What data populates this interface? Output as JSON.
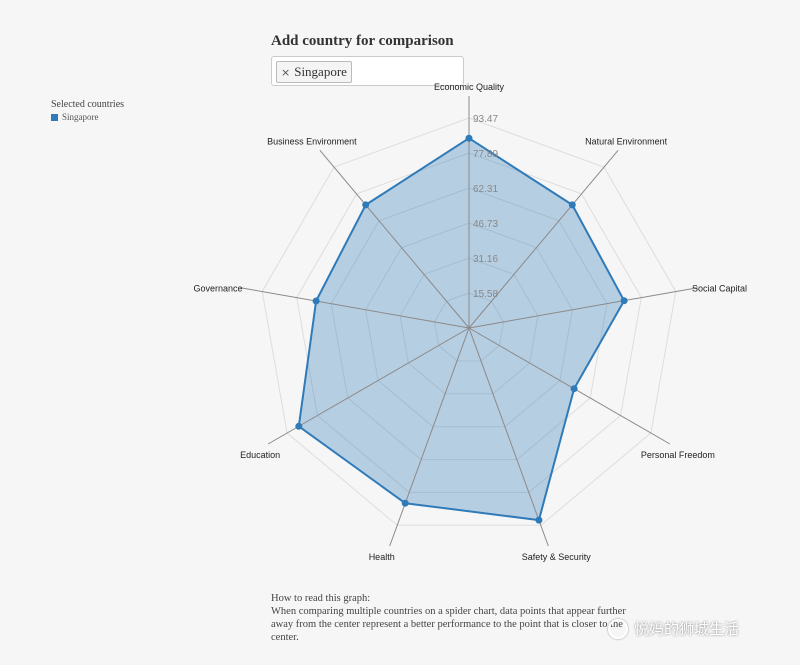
{
  "page": {
    "section_title": "Add country for comparison",
    "selected_country_tag": "Singapore",
    "tag_remove_glyph": "×",
    "legend_title": "Selected countries",
    "note_title": "How to read this graph:",
    "note_body": "When comparing multiple countries on a spider chart, data points that appear further away from the center represent a better performance to the point that is closer to the center.",
    "watermark_text": "悦妈的狮城生活",
    "colors": {
      "series": "#2f7ab8",
      "series_fill": "rgba(47,122,184,0.32)",
      "grid": "#dddddd",
      "axis": "#8a8a8a"
    }
  },
  "chart_data": {
    "type": "radar",
    "axes": [
      "Economic Quality",
      "Natural Environment",
      "Social Capital",
      "Personal Freedom",
      "Safety & Security",
      "Health",
      "Education",
      "Governance",
      "Business Environment"
    ],
    "ticks": [
      "15.58",
      "31.16",
      "46.73",
      "62.31",
      "77.89",
      "93.47"
    ],
    "range": [
      0,
      93.47
    ],
    "series": [
      {
        "name": "Singapore",
        "values": [
          84.5,
          71.5,
          70.1,
          54.0,
          91.0,
          83.0,
          87.5,
          69.1,
          71.5
        ]
      }
    ],
    "grid": true,
    "legend_position": "top-left"
  }
}
